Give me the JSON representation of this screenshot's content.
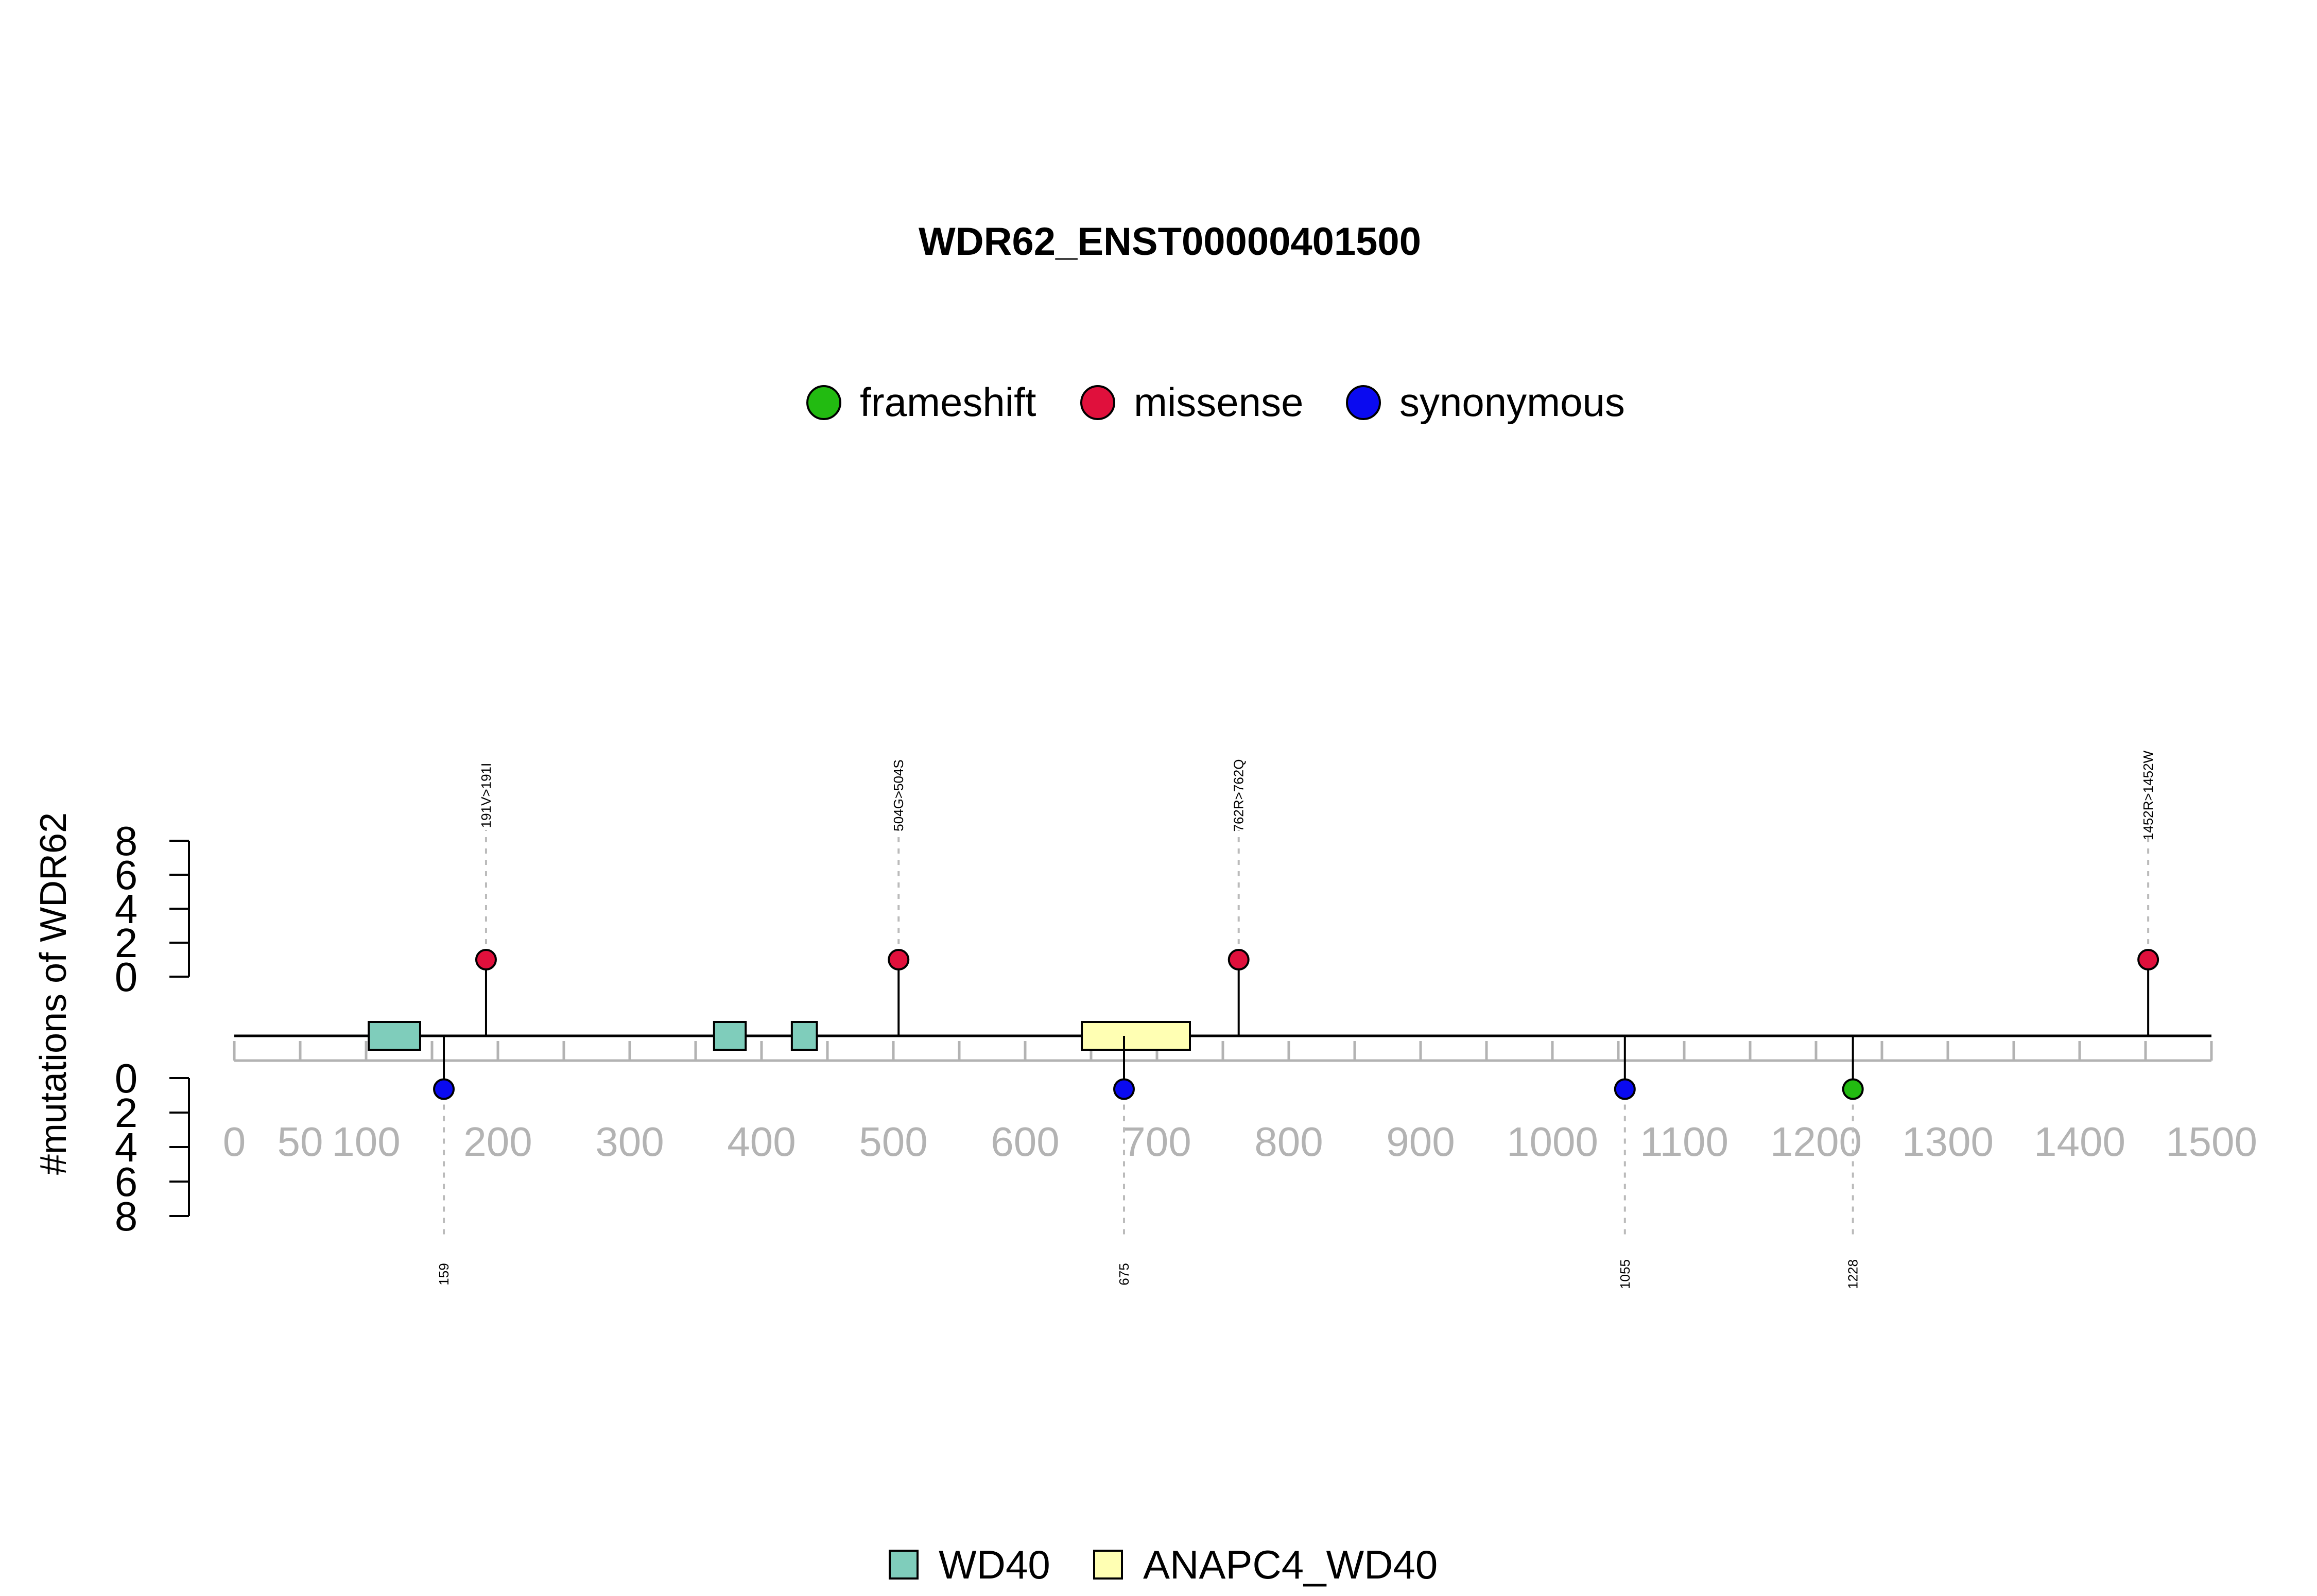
{
  "chart_data": {
    "type": "lollipop",
    "title": "WDR62_ENST00000401500",
    "ylabel": "#mutations of WDR62",
    "xlim": [
      0,
      1500
    ],
    "x_ticks": [
      0,
      50,
      100,
      150,
      200,
      250,
      300,
      350,
      400,
      450,
      500,
      550,
      600,
      650,
      700,
      750,
      800,
      850,
      900,
      950,
      1000,
      1050,
      1100,
      1150,
      1200,
      1250,
      1300,
      1350,
      1400,
      1450,
      1500
    ],
    "x_tick_labels": [
      "0",
      "50",
      "100",
      "",
      "200",
      "",
      "300",
      "",
      "400",
      "",
      "500",
      "",
      "600",
      "",
      "700",
      "",
      "800",
      "",
      "900",
      "",
      "1000",
      "",
      "1100",
      "",
      "1200",
      "",
      "1300",
      "",
      "1400",
      "",
      "1500"
    ],
    "y_ticks_top": [
      "0",
      "2",
      "4",
      "6",
      "8"
    ],
    "y_ticks_bottom": [
      "0",
      "2",
      "4",
      "6",
      "8"
    ],
    "ylim": [
      0,
      8
    ],
    "mutation_legend": [
      {
        "name": "frameshift",
        "color": "#22bb11"
      },
      {
        "name": "missense",
        "color": "#e0103c"
      },
      {
        "name": "synonymous",
        "color": "#0a0af0"
      }
    ],
    "mutations_top": [
      {
        "position": 191,
        "count": 1,
        "type": "missense",
        "label": "191V>191I"
      },
      {
        "position": 504,
        "count": 1,
        "type": "missense",
        "label": "504G>504S"
      },
      {
        "position": 762,
        "count": 1,
        "type": "missense",
        "label": "762R>762Q"
      },
      {
        "position": 1452,
        "count": 1,
        "type": "missense",
        "label": "1452R>1452W"
      }
    ],
    "mutations_bottom": [
      {
        "position": 159,
        "count": 1,
        "type": "synonymous",
        "label": "159"
      },
      {
        "position": 675,
        "count": 1,
        "type": "synonymous",
        "label": "675"
      },
      {
        "position": 1055,
        "count": 1,
        "type": "synonymous",
        "label": "1055"
      },
      {
        "position": 1228,
        "count": 1,
        "type": "frameshift",
        "label": "1228"
      }
    ],
    "domains": [
      {
        "name": "WD40",
        "start": 102,
        "end": 141,
        "color": "#7fcdbb"
      },
      {
        "name": "WD40",
        "start": 364,
        "end": 388,
        "color": "#7fcdbb"
      },
      {
        "name": "WD40",
        "start": 423,
        "end": 442,
        "color": "#7fcdbb"
      },
      {
        "name": "ANAPC4_WD40",
        "start": 643,
        "end": 725,
        "color": "#ffffb3"
      }
    ],
    "domain_legend": [
      {
        "name": "WD40",
        "color": "#7fcdbb"
      },
      {
        "name": "ANAPC4_WD40",
        "color": "#ffffb3"
      }
    ]
  }
}
